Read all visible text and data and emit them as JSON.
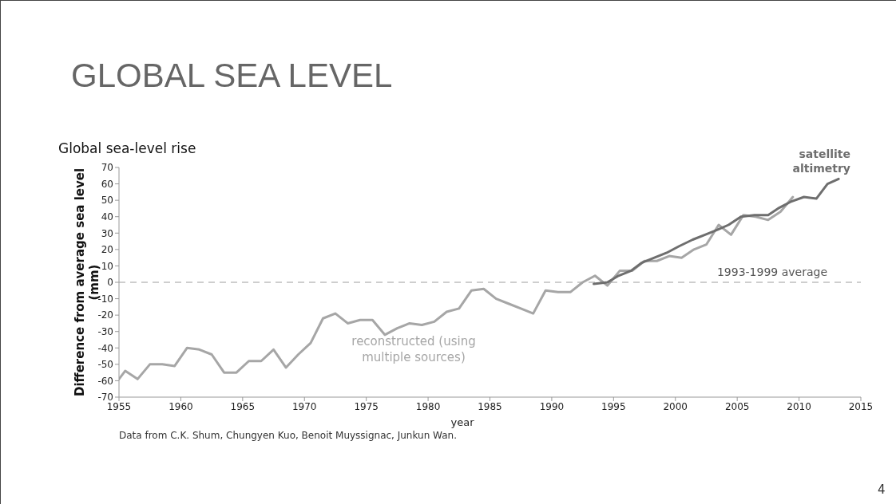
{
  "chart_data": {
    "type": "line",
    "title": "GLOBAL SEA LEVEL",
    "subtitle": "Global sea-level rise",
    "xlabel": "year",
    "ylabel": "Difference from average sea level (mm)",
    "xlim": [
      1955,
      2015
    ],
    "xticks": [
      1955,
      1960,
      1965,
      1970,
      1975,
      1980,
      1985,
      1990,
      1995,
      2000,
      2005,
      2010,
      2015
    ],
    "ylim": [
      -70,
      70
    ],
    "yticks": [
      -70,
      -60,
      -50,
      -40,
      -30,
      -20,
      -10,
      0,
      10,
      20,
      30,
      40,
      50,
      60,
      70
    ],
    "marker": "none",
    "line_style": "solid",
    "series": [
      {
        "name": "reconstructed (using multiple sources)",
        "color": "#a6a6a6",
        "x": [
          1955.0,
          1955.5,
          1956.5,
          1957.5,
          1958.5,
          1959.5,
          1960.5,
          1961.5,
          1962.5,
          1963.5,
          1964.5,
          1965.5,
          1966.5,
          1967.5,
          1968.5,
          1969.5,
          1970.5,
          1971.5,
          1972.5,
          1973.5,
          1974.5,
          1975.5,
          1976.5,
          1977.5,
          1978.5,
          1979.5,
          1980.5,
          1981.5,
          1982.5,
          1983.5,
          1984.5,
          1985.5,
          1986.5,
          1987.5,
          1988.5,
          1989.5,
          1990.5,
          1991.5,
          1992.5,
          1993.5,
          1994.5,
          1995.5,
          1996.5,
          1997.5,
          1998.5,
          1999.5,
          2000.5,
          2001.5,
          2002.5,
          2003.5,
          2004.5,
          2005.5,
          2006.5,
          2007.5,
          2008.5,
          2009.5
        ],
        "values": [
          -59,
          -54,
          -59,
          -50,
          -50,
          -51,
          -40,
          -41,
          -44,
          -55,
          -55,
          -48,
          -48,
          -41,
          -52,
          -44,
          -37,
          -22,
          -19,
          -25,
          -23,
          -23,
          -32,
          -28,
          -25,
          -26,
          -24,
          -18,
          -16,
          -5,
          -4,
          -10,
          -13,
          -16,
          -19,
          -5,
          -6,
          -6,
          0,
          4,
          -2,
          7,
          7,
          13,
          13,
          16,
          15,
          20,
          23,
          35,
          29,
          41,
          40,
          38,
          43,
          52
        ]
      },
      {
        "name": "satellite altimetry",
        "color": "#6e6e6e",
        "x": [
          1993.4,
          1994.5,
          1995.4,
          1996.4,
          1997.3,
          1998.3,
          1999.3,
          2000.3,
          2001.4,
          2002.4,
          2003.4,
          2004.3,
          2005.3,
          2006.4,
          2007.5,
          2008.3,
          2009.3,
          2010.4,
          2011.4,
          2012.3,
          2013.2
        ],
        "values": [
          -1,
          0,
          4,
          7,
          12,
          15,
          18,
          22,
          26,
          29,
          32,
          35,
          40,
          41,
          41,
          45,
          49,
          52,
          51,
          60,
          63
        ]
      }
    ],
    "ref_lines": [
      {
        "axis": "y",
        "value": 0,
        "label": "1993-1999 average",
        "color": "#bfbfbf",
        "line_style": "dashed"
      }
    ],
    "annotations": [
      "Data from C.K. Shum, Chungyen Kuo, Benoit Muyssignac, Junkun Wan.",
      "4"
    ]
  }
}
